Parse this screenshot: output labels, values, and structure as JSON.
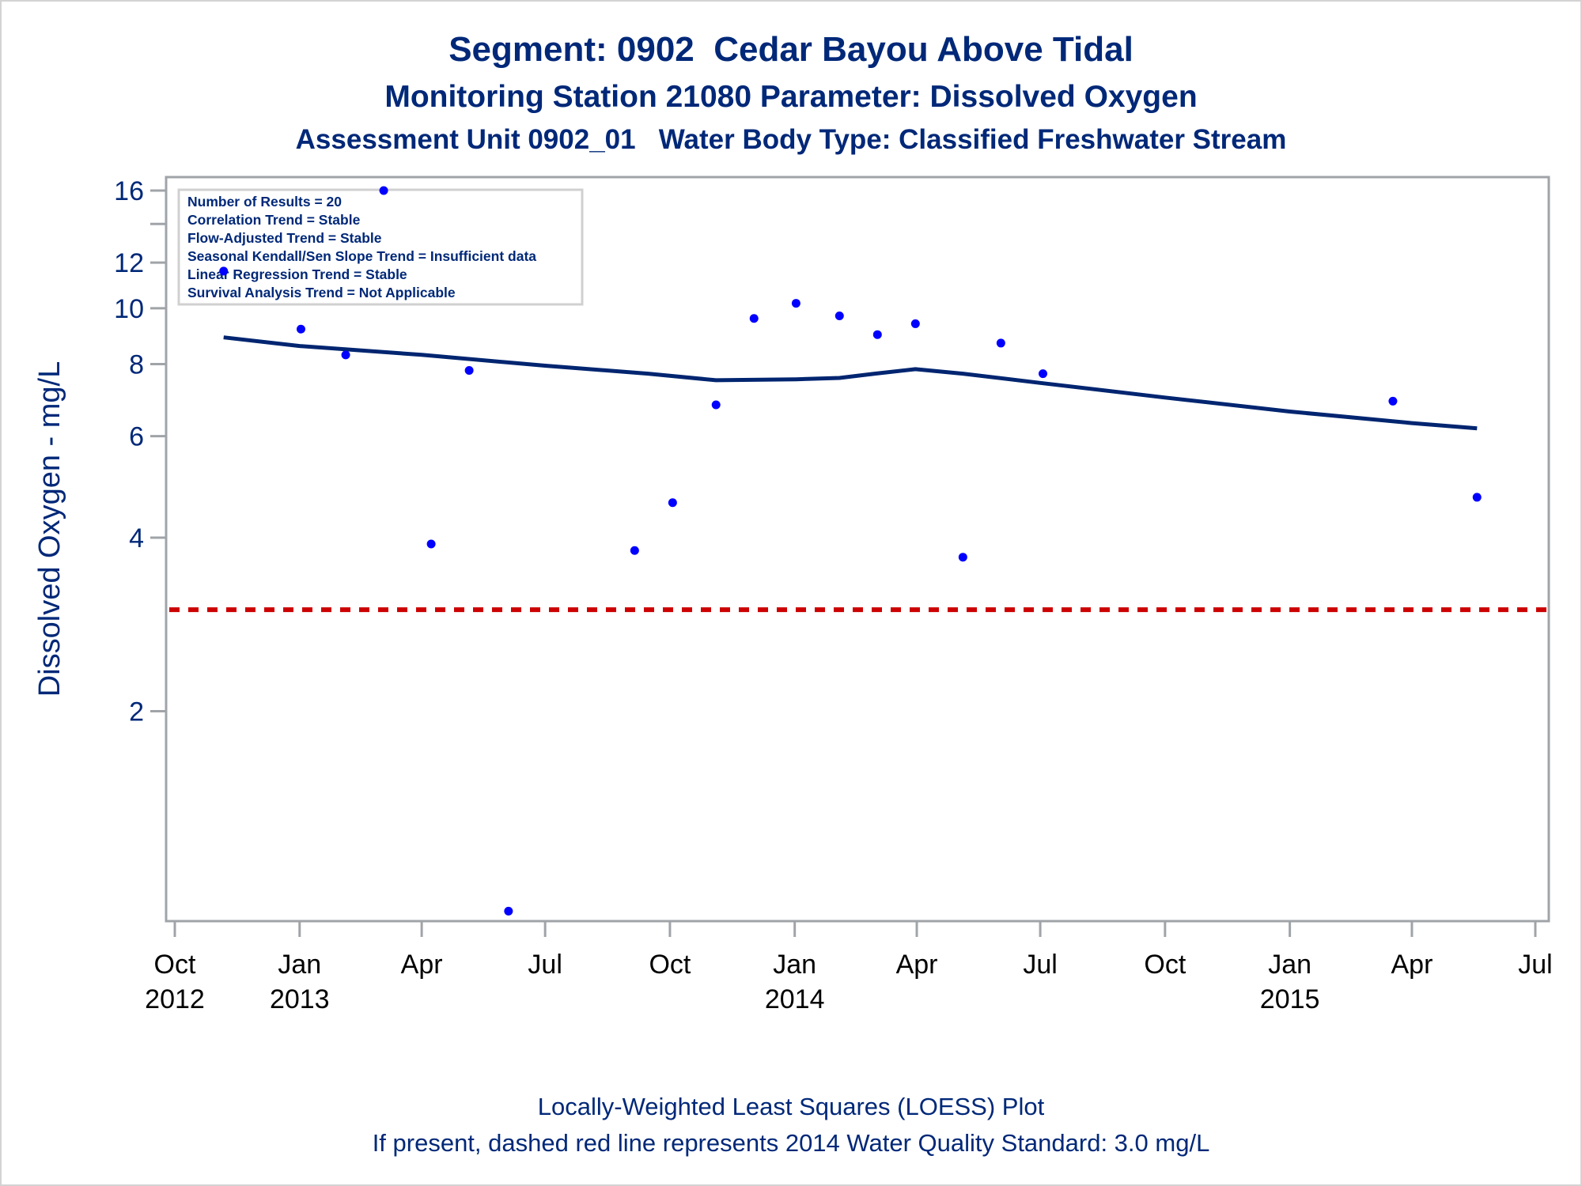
{
  "titles": {
    "line1": "Segment: 0902  Cedar Bayou Above Tidal",
    "line2": "Monitoring Station 21080 Parameter: Dissolved Oxygen",
    "line3": "Assessment Unit 0902_01   Water Body Type: Classified Freshwater Stream"
  },
  "footnotes": {
    "line1": "Locally-Weighted Least Squares (LOESS) Plot",
    "line2": "If present, dashed red line represents 2014 Water Quality Standard: 3.0 mg/L"
  },
  "legend_box": [
    "Number of Results = 20",
    "Correlation Trend = Stable",
    "Flow-Adjusted Trend = Stable",
    "Seasonal Kendall/Sen Slope Trend = Insufficient data",
    "Linear Regression Trend = Stable",
    "Survival Analysis Trend = Not Applicable"
  ],
  "colors": {
    "title": "#002878",
    "points": "#0000ff",
    "loess": "#002570",
    "standard_line": "#cc0000",
    "axis": "#a0a4a8",
    "legend_border": "#d0d0d0"
  },
  "chart_data": {
    "type": "scatter",
    "title": "Segment: 0902  Cedar Bayou Above Tidal",
    "subtitle": "Monitoring Station 21080 Parameter: Dissolved Oxygen",
    "xlabel": "",
    "ylabel": "Dissolved Oxygen - mg/L",
    "yscale": "log",
    "ylim": [
      0.865,
      17.1
    ],
    "xlim": [
      "2012-09-25",
      "2015-07-10"
    ],
    "grid": false,
    "y_ticks": [
      {
        "value": 2,
        "label": "2"
      },
      {
        "value": 4,
        "label": "4"
      },
      {
        "value": 6,
        "label": "6"
      },
      {
        "value": 8,
        "label": "8"
      },
      {
        "value": 10,
        "label": "10"
      },
      {
        "value": 12,
        "label": "12"
      },
      {
        "value": 14,
        "label": ""
      },
      {
        "value": 16,
        "label": "16"
      }
    ],
    "x_ticks": [
      {
        "date": "2012-10-01",
        "label": "Oct",
        "year": "2012"
      },
      {
        "date": "2013-01-01",
        "label": "Jan",
        "year": "2013"
      },
      {
        "date": "2013-04-01",
        "label": "Apr",
        "year": ""
      },
      {
        "date": "2013-07-01",
        "label": "Jul",
        "year": ""
      },
      {
        "date": "2013-10-01",
        "label": "Oct",
        "year": ""
      },
      {
        "date": "2014-01-01",
        "label": "Jan",
        "year": "2014"
      },
      {
        "date": "2014-04-01",
        "label": "Apr",
        "year": ""
      },
      {
        "date": "2014-07-01",
        "label": "Jul",
        "year": ""
      },
      {
        "date": "2014-10-01",
        "label": "Oct",
        "year": ""
      },
      {
        "date": "2015-01-01",
        "label": "Jan",
        "year": "2015"
      },
      {
        "date": "2015-04-01",
        "label": "Apr",
        "year": ""
      },
      {
        "date": "2015-07-01",
        "label": "Jul",
        "year": ""
      }
    ],
    "series": [
      {
        "name": "Dissolved Oxygen results",
        "type": "scatter",
        "points": [
          {
            "date": "2012-11-06",
            "value": 11.6
          },
          {
            "date": "2013-01-02",
            "value": 9.2
          },
          {
            "date": "2013-02-04",
            "value": 8.3
          },
          {
            "date": "2013-03-04",
            "value": 16.0
          },
          {
            "date": "2013-04-08",
            "value": 3.9
          },
          {
            "date": "2013-05-06",
            "value": 7.8
          },
          {
            "date": "2013-06-04",
            "value": 0.9
          },
          {
            "date": "2013-09-05",
            "value": 3.8
          },
          {
            "date": "2013-10-03",
            "value": 4.6
          },
          {
            "date": "2013-11-04",
            "value": 6.8
          },
          {
            "date": "2013-12-02",
            "value": 9.6
          },
          {
            "date": "2014-01-02",
            "value": 10.2
          },
          {
            "date": "2014-02-03",
            "value": 9.7
          },
          {
            "date": "2014-03-03",
            "value": 9.0
          },
          {
            "date": "2014-03-31",
            "value": 9.4
          },
          {
            "date": "2014-05-05",
            "value": 3.7
          },
          {
            "date": "2014-06-02",
            "value": 8.7
          },
          {
            "date": "2014-07-03",
            "value": 7.7
          },
          {
            "date": "2015-03-18",
            "value": 6.9
          },
          {
            "date": "2015-05-19",
            "value": 4.7
          }
        ]
      },
      {
        "name": "LOESS",
        "type": "line",
        "points": [
          {
            "date": "2012-11-06",
            "value": 8.9
          },
          {
            "date": "2013-01-01",
            "value": 8.6
          },
          {
            "date": "2013-04-01",
            "value": 8.3
          },
          {
            "date": "2013-07-01",
            "value": 7.95
          },
          {
            "date": "2013-09-15",
            "value": 7.7
          },
          {
            "date": "2013-11-04",
            "value": 7.5
          },
          {
            "date": "2014-01-02",
            "value": 7.53
          },
          {
            "date": "2014-02-03",
            "value": 7.57
          },
          {
            "date": "2014-03-01",
            "value": 7.7
          },
          {
            "date": "2014-03-31",
            "value": 7.84
          },
          {
            "date": "2014-05-05",
            "value": 7.7
          },
          {
            "date": "2014-07-01",
            "value": 7.42
          },
          {
            "date": "2014-10-01",
            "value": 7.0
          },
          {
            "date": "2015-01-01",
            "value": 6.62
          },
          {
            "date": "2015-04-01",
            "value": 6.32
          },
          {
            "date": "2015-05-19",
            "value": 6.19
          }
        ]
      }
    ],
    "reference_lines": [
      {
        "name": "2014 Water Quality Standard",
        "value": 3.0,
        "style": "dashed"
      }
    ],
    "annotations": [
      "Number of Results = 20",
      "Correlation Trend = Stable",
      "Flow-Adjusted Trend = Stable",
      "Seasonal Kendall/Sen Slope Trend = Insufficient data",
      "Linear Regression Trend = Stable",
      "Survival Analysis Trend = Not Applicable"
    ],
    "legend": "top-left"
  }
}
